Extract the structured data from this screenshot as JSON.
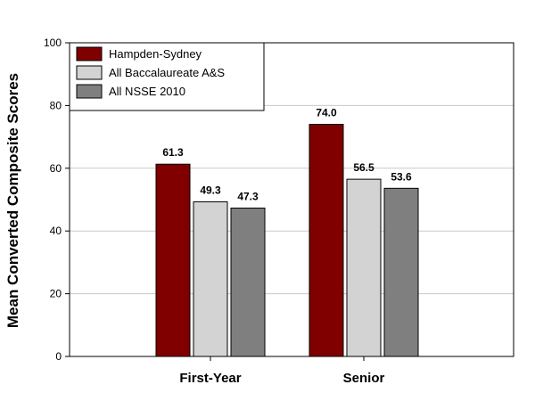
{
  "chart_data": {
    "type": "bar",
    "title": "",
    "xlabel": "",
    "ylabel": "Mean Converted Composite Scores",
    "ylim": [
      0,
      100
    ],
    "yticks": [
      0,
      20,
      40,
      60,
      80,
      100
    ],
    "grid": true,
    "legend_position": "top-left",
    "categories": [
      "First-Year",
      "Senior"
    ],
    "series": [
      {
        "name": "Hampden-Sydney",
        "color": "#800000",
        "values": [
          61.3,
          74.0
        ],
        "labels": [
          "61.3",
          "74.0"
        ]
      },
      {
        "name": "All Baccalaureate A&S",
        "color": "#d3d3d3",
        "values": [
          49.3,
          56.5
        ],
        "labels": [
          "49.3",
          "56.5"
        ]
      },
      {
        "name": "All NSSE 2010",
        "color": "#7f7f7f",
        "values": [
          47.3,
          53.6
        ],
        "labels": [
          "47.3",
          "53.6"
        ]
      }
    ]
  }
}
